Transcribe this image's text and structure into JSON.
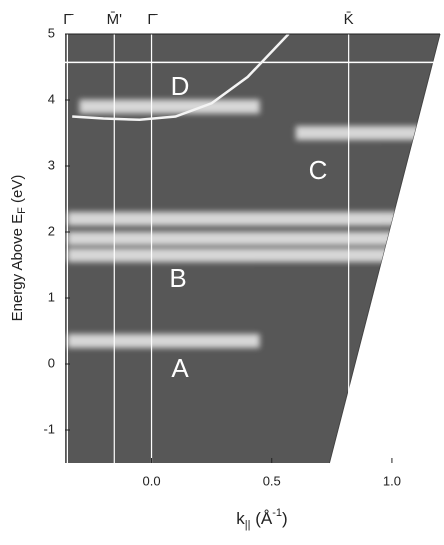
{
  "chart_data": {
    "type": "intensity-map",
    "xlabel": {
      "main": "k",
      "sub": "||",
      "unit": " (Å",
      "sup": "-1",
      "close": ")"
    },
    "ylabel": {
      "main": "Energy Above E",
      "sub": "F",
      "unit": " (eV)"
    },
    "xlim": [
      -0.36,
      1.2
    ],
    "ylim": [
      -1.5,
      5
    ],
    "xticks": [
      {
        "value": 0,
        "label": "0.0"
      },
      0.5,
      {
        "value": 1,
        "label": "1.0"
      }
    ],
    "yticks": [
      -1,
      0,
      1,
      2,
      3,
      4,
      5
    ],
    "symmetry_points": {
      "labels": [
        "Γ̄",
        "M̄'",
        "Γ̄",
        "K̄"
      ],
      "k": [
        -0.35,
        -0.155,
        0,
        0.82
      ]
    },
    "reference_energy": 4.57,
    "bands": [
      {
        "k": [
          -0.35,
          0.45
        ],
        "energy": 0.35
      },
      {
        "k": [
          -0.35,
          1.1
        ],
        "energy": 1.65
      },
      {
        "k": [
          -0.35,
          1.1
        ],
        "energy": 1.9
      },
      {
        "k": [
          -0.35,
          1.15
        ],
        "energy": 2.2
      },
      {
        "k": [
          0.6,
          1.2
        ],
        "energy": 3.5
      },
      {
        "k": [
          -0.3,
          0.45
        ],
        "energy": 3.9
      }
    ],
    "band_labels": [
      "A",
      "B",
      "C",
      "D"
    ],
    "dispersion": {
      "x": [
        -0.33,
        -0.2,
        -0.05,
        0.1,
        0.25,
        0.4,
        0.57
      ],
      "y": [
        3.75,
        3.72,
        3.7,
        3.75,
        3.95,
        4.35,
        5.0
      ]
    },
    "edge": {
      "x": [
        0.74,
        1.2
      ],
      "y": [
        -1.5,
        5
      ]
    },
    "background": "#575757",
    "highlight": "#eeeeee"
  }
}
